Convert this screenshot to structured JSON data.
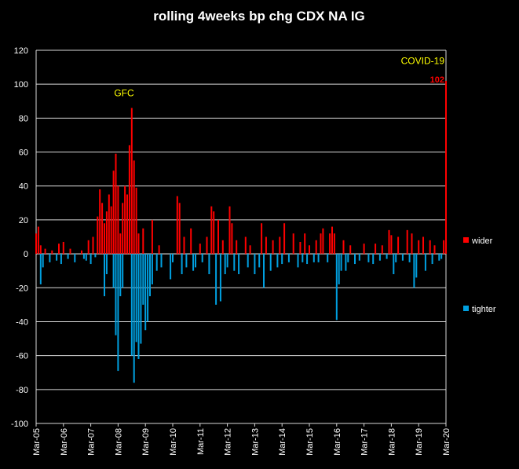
{
  "chart_data": {
    "type": "bar",
    "title": "rolling 4weeks bp chg CDX NA IG",
    "xlabel": "",
    "ylabel": "",
    "ylim": [
      -100,
      120
    ],
    "yticks": [
      120,
      100,
      80,
      60,
      40,
      20,
      0,
      -20,
      -40,
      -60,
      -80,
      -100
    ],
    "x_tick_labels": [
      "Mar-05",
      "Mar-06",
      "Mar-07",
      "Mar-08",
      "Mar-09",
      "Mar-10",
      "Mar-11",
      "Mar-12",
      "Mar-13",
      "Mar-14",
      "Mar-15",
      "Mar-16",
      "Mar-17",
      "Mar-18",
      "Mar-19",
      "Mar-20"
    ],
    "x_range": [
      "2005-03",
      "2020-03"
    ],
    "grid": true,
    "legend_position": "right",
    "series": [
      {
        "name": "wider",
        "color": "#ff0000",
        "points": [
          [
            "2005-03",
            12
          ],
          [
            "2005-04",
            16
          ],
          [
            "2005-05",
            5
          ],
          [
            "2005-07",
            3
          ],
          [
            "2005-10",
            2
          ],
          [
            "2006-01",
            6
          ],
          [
            "2006-03",
            7
          ],
          [
            "2006-06",
            3
          ],
          [
            "2006-11",
            2
          ],
          [
            "2007-02",
            8
          ],
          [
            "2007-04",
            10
          ],
          [
            "2007-06",
            22
          ],
          [
            "2007-07",
            38
          ],
          [
            "2007-08",
            30
          ],
          [
            "2007-09",
            18
          ],
          [
            "2007-10",
            25
          ],
          [
            "2007-11",
            35
          ],
          [
            "2007-12",
            28
          ],
          [
            "2008-01",
            49
          ],
          [
            "2008-02",
            59
          ],
          [
            "2008-03",
            40
          ],
          [
            "2008-04",
            12
          ],
          [
            "2008-05",
            30
          ],
          [
            "2008-06",
            40
          ],
          [
            "2008-07",
            35
          ],
          [
            "2008-08",
            64
          ],
          [
            "2008-09",
            86
          ],
          [
            "2008-10",
            55
          ],
          [
            "2008-11",
            39
          ],
          [
            "2008-12",
            12
          ],
          [
            "2009-02",
            15
          ],
          [
            "2009-06",
            20
          ],
          [
            "2009-09",
            5
          ],
          [
            "2010-05",
            34
          ],
          [
            "2010-06",
            30
          ],
          [
            "2010-08",
            10
          ],
          [
            "2010-11",
            15
          ],
          [
            "2011-03",
            6
          ],
          [
            "2011-06",
            10
          ],
          [
            "2011-08",
            28
          ],
          [
            "2011-09",
            25
          ],
          [
            "2011-11",
            20
          ],
          [
            "2012-01",
            8
          ],
          [
            "2012-04",
            28
          ],
          [
            "2012-05",
            18
          ],
          [
            "2012-07",
            8
          ],
          [
            "2012-11",
            10
          ],
          [
            "2013-01",
            5
          ],
          [
            "2013-06",
            18
          ],
          [
            "2013-08",
            10
          ],
          [
            "2013-11",
            8
          ],
          [
            "2014-02",
            10
          ],
          [
            "2014-04",
            18
          ],
          [
            "2014-08",
            12
          ],
          [
            "2014-11",
            7
          ],
          [
            "2015-01",
            12
          ],
          [
            "2015-03",
            5
          ],
          [
            "2015-06",
            8
          ],
          [
            "2015-08",
            12
          ],
          [
            "2015-09",
            15
          ],
          [
            "2015-12",
            12
          ],
          [
            "2016-01",
            16
          ],
          [
            "2016-02",
            12
          ],
          [
            "2016-06",
            8
          ],
          [
            "2016-09",
            5
          ],
          [
            "2017-03",
            6
          ],
          [
            "2017-08",
            6
          ],
          [
            "2017-11",
            5
          ],
          [
            "2018-02",
            14
          ],
          [
            "2018-03",
            11
          ],
          [
            "2018-06",
            10
          ],
          [
            "2018-10",
            14
          ],
          [
            "2018-12",
            12
          ],
          [
            "2019-03",
            8
          ],
          [
            "2019-05",
            10
          ],
          [
            "2019-08",
            8
          ],
          [
            "2019-10",
            5
          ],
          [
            "2020-02",
            8
          ],
          [
            "2020-03",
            102
          ]
        ]
      },
      {
        "name": "tighter",
        "color": "#00a0e0",
        "points": [
          [
            "2005-05",
            -18
          ],
          [
            "2005-06",
            -8
          ],
          [
            "2005-09",
            -5
          ],
          [
            "2005-12",
            -4
          ],
          [
            "2006-02",
            -6
          ],
          [
            "2006-05",
            -3
          ],
          [
            "2006-08",
            -5
          ],
          [
            "2006-12",
            -3
          ],
          [
            "2007-01",
            -4
          ],
          [
            "2007-03",
            -6
          ],
          [
            "2007-05",
            -2
          ],
          [
            "2007-09",
            -25
          ],
          [
            "2007-10",
            -12
          ],
          [
            "2008-01",
            -20
          ],
          [
            "2008-02",
            -48
          ],
          [
            "2008-03",
            -69
          ],
          [
            "2008-04",
            -25
          ],
          [
            "2008-05",
            -20
          ],
          [
            "2008-09",
            -60
          ],
          [
            "2008-10",
            -76
          ],
          [
            "2008-11",
            -52
          ],
          [
            "2008-12",
            -62
          ],
          [
            "2009-01",
            -53
          ],
          [
            "2009-02",
            -30
          ],
          [
            "2009-03",
            -45
          ],
          [
            "2009-04",
            -40
          ],
          [
            "2009-05",
            -25
          ],
          [
            "2009-06",
            -18
          ],
          [
            "2009-08",
            -10
          ],
          [
            "2009-10",
            -8
          ],
          [
            "2010-02",
            -15
          ],
          [
            "2010-03",
            -5
          ],
          [
            "2010-07",
            -12
          ],
          [
            "2010-09",
            -8
          ],
          [
            "2010-12",
            -10
          ],
          [
            "2011-01",
            -8
          ],
          [
            "2011-04",
            -5
          ],
          [
            "2011-07",
            -12
          ],
          [
            "2011-10",
            -30
          ],
          [
            "2011-12",
            -28
          ],
          [
            "2012-02",
            -12
          ],
          [
            "2012-03",
            -8
          ],
          [
            "2012-06",
            -10
          ],
          [
            "2012-08",
            -12
          ],
          [
            "2012-12",
            -8
          ],
          [
            "2013-03",
            -12
          ],
          [
            "2013-05",
            -8
          ],
          [
            "2013-07",
            -20
          ],
          [
            "2013-10",
            -10
          ],
          [
            "2014-01",
            -8
          ],
          [
            "2014-03",
            -6
          ],
          [
            "2014-06",
            -5
          ],
          [
            "2014-10",
            -8
          ],
          [
            "2014-12",
            -5
          ],
          [
            "2015-02",
            -6
          ],
          [
            "2015-05",
            -5
          ],
          [
            "2015-07",
            -5
          ],
          [
            "2015-11",
            -5
          ],
          [
            "2016-03",
            -39
          ],
          [
            "2016-04",
            -18
          ],
          [
            "2016-05",
            -10
          ],
          [
            "2016-07",
            -10
          ],
          [
            "2016-08",
            -5
          ],
          [
            "2016-11",
            -6
          ],
          [
            "2017-01",
            -4
          ],
          [
            "2017-05",
            -5
          ],
          [
            "2017-07",
            -6
          ],
          [
            "2017-10",
            -4
          ],
          [
            "2018-01",
            -3
          ],
          [
            "2018-04",
            -12
          ],
          [
            "2018-05",
            -5
          ],
          [
            "2018-08",
            -4
          ],
          [
            "2018-11",
            -5
          ],
          [
            "2019-01",
            -20
          ],
          [
            "2019-02",
            -14
          ],
          [
            "2019-06",
            -10
          ],
          [
            "2019-09",
            -6
          ],
          [
            "2019-12",
            -4
          ],
          [
            "2020-01",
            -3
          ]
        ]
      }
    ],
    "annotations": [
      {
        "text": "GFC",
        "x": "2008-07",
        "y": 93,
        "color": "#ffff00"
      },
      {
        "text": "COVID-19",
        "x": "2020-03",
        "y": 112,
        "color": "#ffff00"
      },
      {
        "text": "102",
        "x": "2020-03",
        "y": 101,
        "color": "#ff0000"
      }
    ]
  }
}
